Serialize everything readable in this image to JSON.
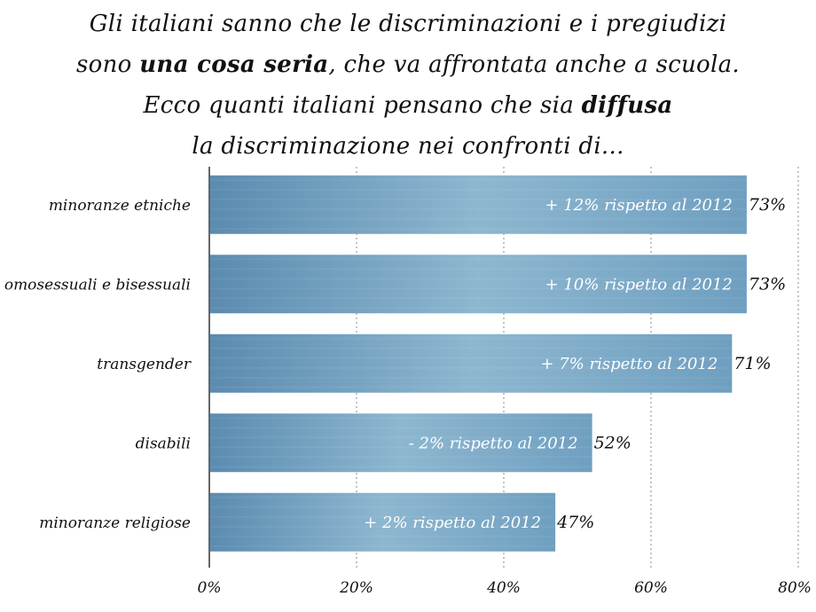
{
  "title": {
    "line1": "Gli italiani sanno che le discriminazioni e i pregiudizi",
    "line2_before": "sono ",
    "line2_bold": "una cosa seria",
    "line2_after": ", che va affrontata anche a scuola.",
    "line3_before": "Ecco quanti italiani pensano che sia ",
    "line3_bold": "diffusa",
    "line4": "la discriminazione nei confronti di..."
  },
  "colors": {
    "bar": "#6f9fc0",
    "bar_light": "#8db7d0",
    "bar_dark": "#5b8bb0",
    "grid": "#888888",
    "axis": "#333333"
  },
  "chart_data": {
    "type": "bar",
    "orientation": "horizontal",
    "categories": [
      "minoranze etniche",
      "omosessuali e bisessuali",
      "transgender",
      "disabili",
      "minoranze religiose"
    ],
    "values": [
      73,
      73,
      71,
      52,
      47
    ],
    "value_labels": [
      "73%",
      "73%",
      "71%",
      "52%",
      "47%"
    ],
    "annotations": [
      "+ 12% rispetto al 2012",
      "+ 10% rispetto al 2012",
      "+ 7% rispetto al 2012",
      "- 2% rispetto al 2012",
      "+ 2% rispetto al 2012"
    ],
    "x_ticks": [
      "0%",
      "20%",
      "40%",
      "60%",
      "80%"
    ],
    "xlim": [
      0,
      80
    ],
    "grid": true
  }
}
